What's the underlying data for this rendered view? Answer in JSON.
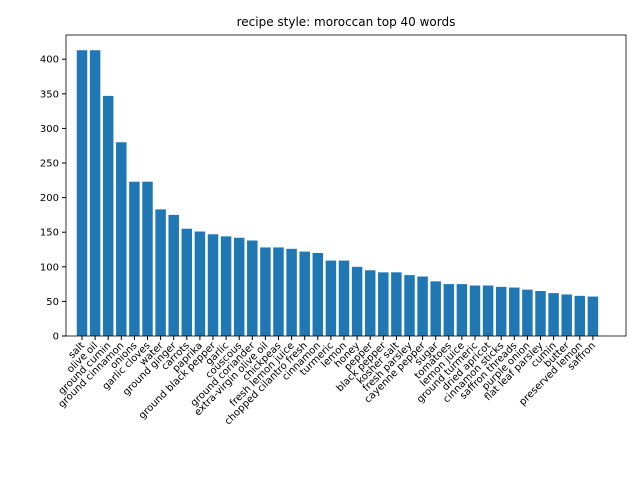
{
  "chart_data": {
    "type": "bar",
    "title": "recipe style: moroccan top 40 words",
    "categories": [
      "salt",
      "olive oil",
      "ground cumin",
      "ground cinnamon",
      "onions",
      "garlic cloves",
      "water",
      "ground ginger",
      "carrots",
      "paprika",
      "ground black pepper",
      "garlic",
      "couscous",
      "ground coriander",
      "extra-virgin olive oil",
      "chickpeas",
      "fresh lemon juice",
      "chopped cilantro fresh",
      "cinnamon",
      "turmeric",
      "lemon",
      "honey",
      "pepper",
      "black pepper",
      "kosher salt",
      "fresh parsley",
      "cayenne pepper",
      "sugar",
      "tomatoes",
      "lemon juice",
      "ground turmeric",
      "dried apricot",
      "cinnamon sticks",
      "saffron threads",
      "purple onion",
      "flat leaf parsley",
      "cumin",
      "butter",
      "preserved lemon",
      "saffron"
    ],
    "values": [
      413,
      413,
      347,
      280,
      223,
      223,
      183,
      175,
      155,
      151,
      147,
      144,
      142,
      138,
      128,
      128,
      126,
      122,
      120,
      109,
      109,
      100,
      95,
      92,
      92,
      88,
      86,
      79,
      75,
      75,
      73,
      73,
      71,
      70,
      67,
      65,
      62,
      60,
      58,
      57
    ],
    "color": "#1f77b4",
    "ylim": [
      0,
      435
    ],
    "yticks": [
      0,
      50,
      100,
      150,
      200,
      250,
      300,
      350,
      400
    ]
  }
}
